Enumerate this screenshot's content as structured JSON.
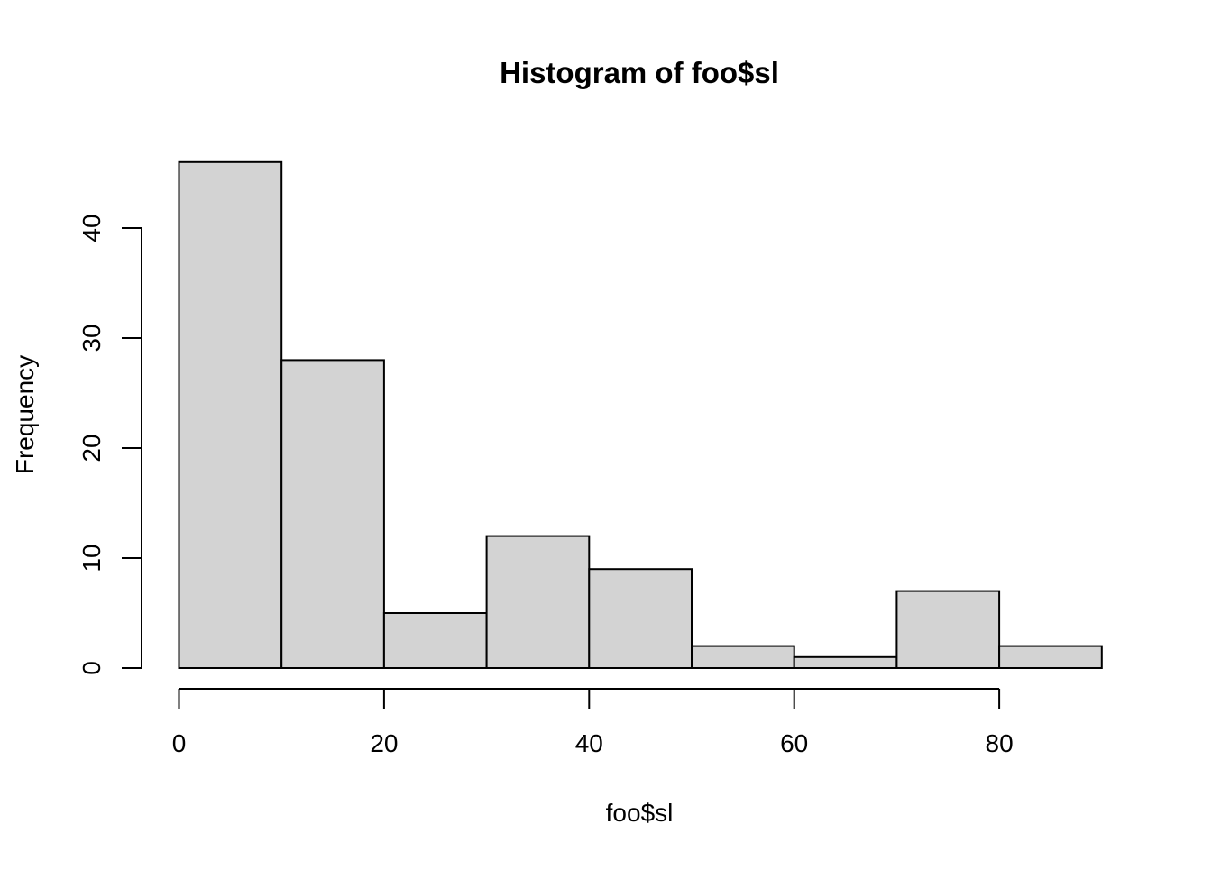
{
  "chart_data": {
    "type": "bar",
    "title": "Histogram of foo$sl",
    "xlabel": "foo$sl",
    "ylabel": "Frequency",
    "bins": [
      {
        "from": 0,
        "to": 10,
        "count": 46
      },
      {
        "from": 10,
        "to": 20,
        "count": 28
      },
      {
        "from": 20,
        "to": 30,
        "count": 5
      },
      {
        "from": 30,
        "to": 40,
        "count": 12
      },
      {
        "from": 40,
        "to": 50,
        "count": 9
      },
      {
        "from": 50,
        "to": 60,
        "count": 2
      },
      {
        "from": 60,
        "to": 70,
        "count": 1
      },
      {
        "from": 70,
        "to": 80,
        "count": 7
      },
      {
        "from": 80,
        "to": 90,
        "count": 2
      }
    ],
    "xticks": [
      0,
      20,
      40,
      60,
      80
    ],
    "yticks": [
      0,
      10,
      20,
      30,
      40
    ],
    "xlim": [
      0,
      90
    ],
    "ylim": [
      0,
      46
    ],
    "grid": false,
    "bar_fill": "#d3d3d3",
    "bar_stroke": "#000000"
  }
}
